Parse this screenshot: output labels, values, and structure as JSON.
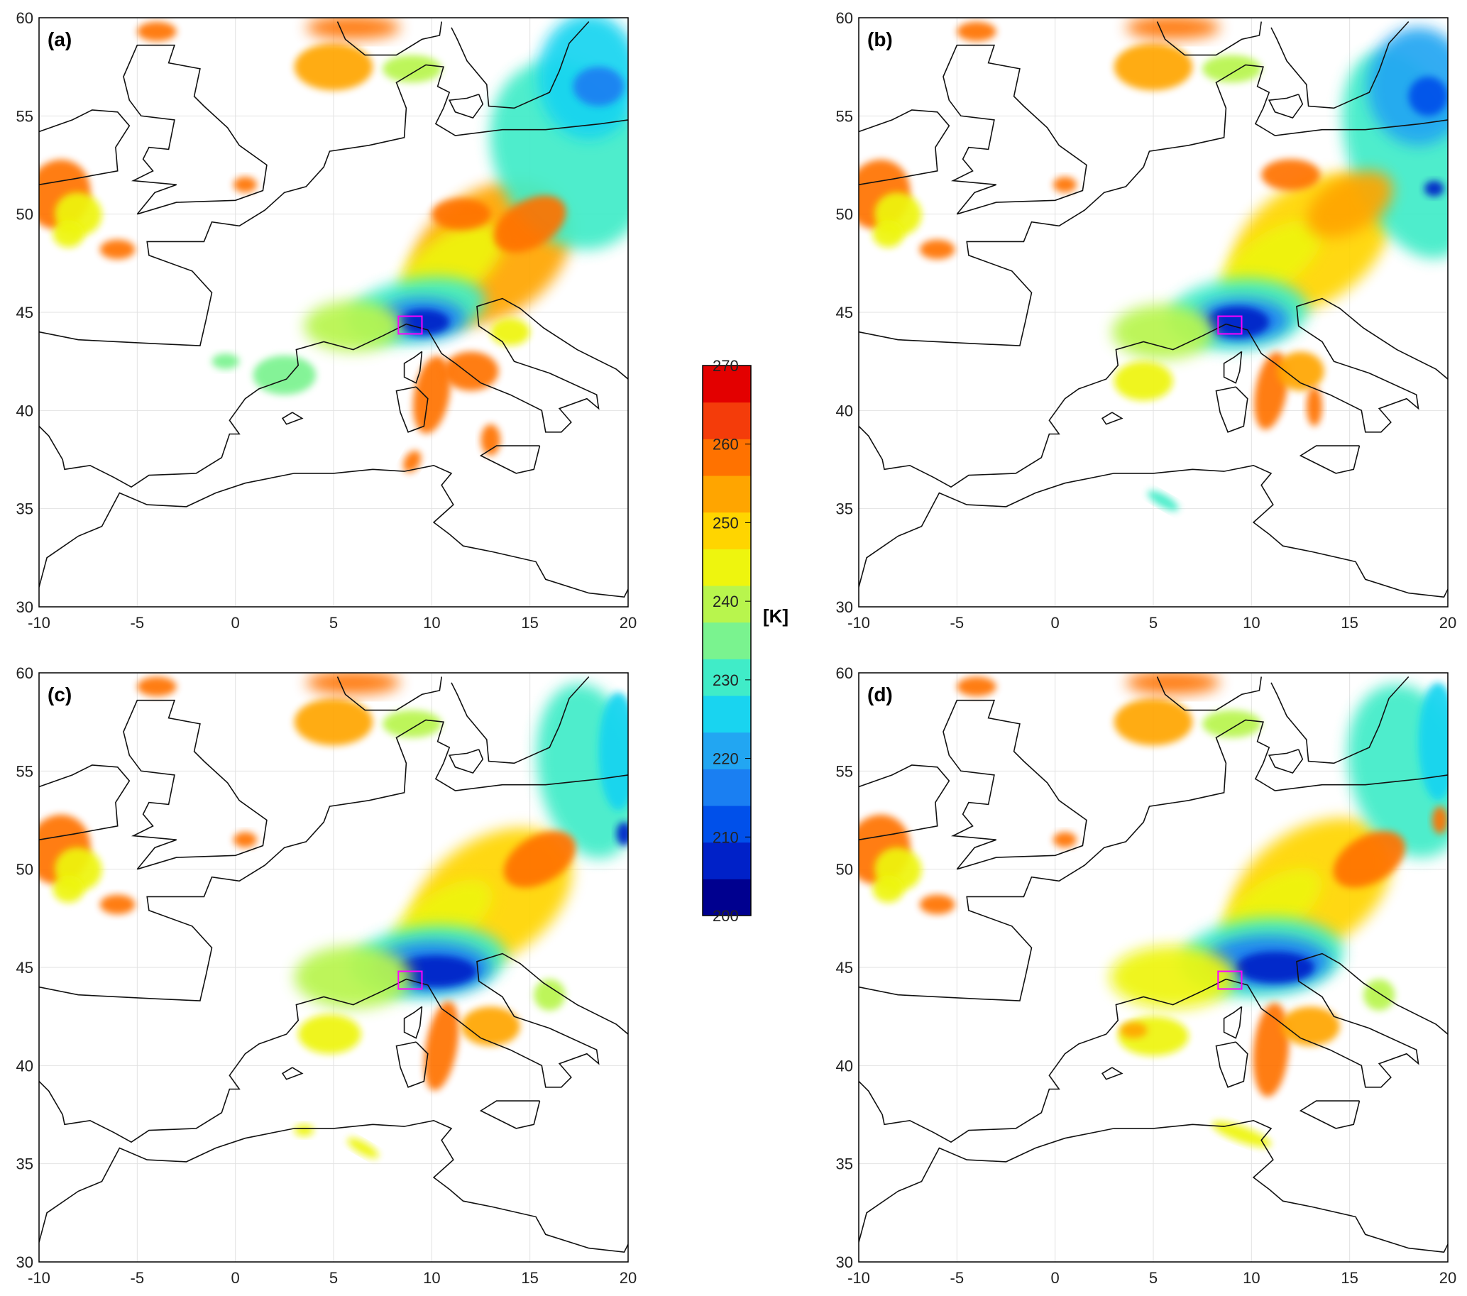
{
  "figure": {
    "colorbar": {
      "unit_label": "[K]",
      "min": 200,
      "max": 270,
      "step": 5,
      "tick_labels": [
        "200",
        "210",
        "220",
        "230",
        "240",
        "250",
        "260",
        "270"
      ],
      "colors": [
        "#00008f",
        "#0021c8",
        "#0050ea",
        "#1a7ff2",
        "#22a6f2",
        "#19d4f0",
        "#40ecc8",
        "#7af38f",
        "#b8f54d",
        "#eef50e",
        "#ffd500",
        "#ffa500",
        "#ff7200",
        "#f43c0a",
        "#e30000"
      ]
    },
    "panels": [
      {
        "label": "(a)",
        "lon_range": [
          -10,
          20
        ],
        "lat_range": [
          30,
          60
        ],
        "lon_ticks": [
          "-10",
          "-5",
          "0",
          "5",
          "10",
          "15",
          "20"
        ],
        "lat_ticks": [
          "30",
          "35",
          "40",
          "45",
          "50",
          "55",
          "60"
        ],
        "box": {
          "lon": [
            8.3,
            9.5
          ],
          "lat": [
            43.9,
            44.8
          ]
        },
        "core": {
          "lon": 9.8,
          "lat": 44.5
        }
      },
      {
        "label": "(b)",
        "lon_range": [
          -10,
          20
        ],
        "lat_range": [
          30,
          60
        ],
        "lon_ticks": [
          "-10",
          "-5",
          "0",
          "5",
          "10",
          "15",
          "20"
        ],
        "lat_ticks": [
          "30",
          "35",
          "40",
          "45",
          "50",
          "55",
          "60"
        ],
        "box": {
          "lon": [
            8.3,
            9.5
          ],
          "lat": [
            43.9,
            44.8
          ]
        },
        "core": {
          "lon": 9.8,
          "lat": 44.4
        }
      },
      {
        "label": "(c)",
        "lon_range": [
          -10,
          20
        ],
        "lat_range": [
          30,
          60
        ],
        "lon_ticks": [
          "-10",
          "-5",
          "0",
          "5",
          "10",
          "15",
          "20"
        ],
        "lat_ticks": [
          "30",
          "35",
          "40",
          "45",
          "50",
          "55",
          "60"
        ],
        "box": {
          "lon": [
            8.3,
            9.5
          ],
          "lat": [
            43.9,
            44.8
          ]
        },
        "core": {
          "lon": 10.2,
          "lat": 45.0
        }
      },
      {
        "label": "(d)",
        "lon_range": [
          -10,
          20
        ],
        "lat_range": [
          30,
          60
        ],
        "lon_ticks": [
          "-10",
          "-5",
          "0",
          "5",
          "10",
          "15",
          "20"
        ],
        "lat_ticks": [
          "30",
          "35",
          "40",
          "45",
          "50",
          "55",
          "60"
        ],
        "box": {
          "lon": [
            8.3,
            9.5
          ],
          "lat": [
            43.9,
            44.8
          ]
        },
        "core": {
          "lon": 10.5,
          "lat": 45.2
        }
      }
    ]
  }
}
